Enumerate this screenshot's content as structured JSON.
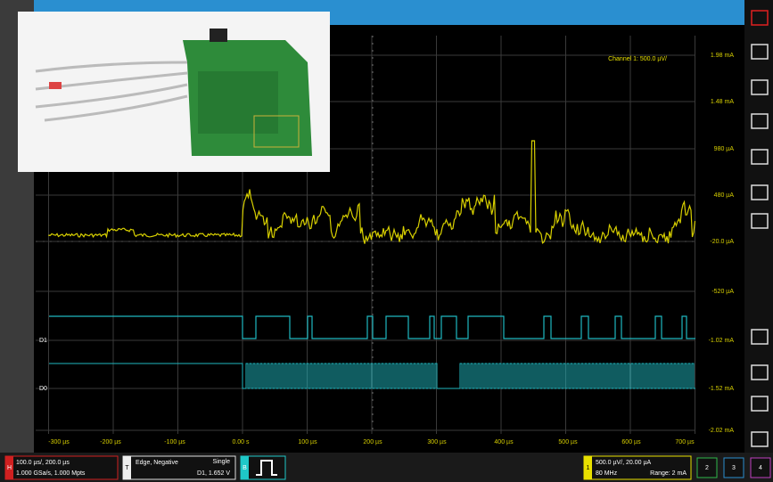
{
  "window": {
    "channel_label": "Channel 1: 500.0 µV/",
    "y_axis_labels": [
      "1.98 mA",
      "1.48 mA",
      "980 µA",
      "480 µA",
      "-20.0 µA",
      "-520 µA",
      "-1.02 mA",
      "-1.52 mA",
      "-2.02 mA"
    ],
    "x_axis_labels": [
      "-300 µs",
      "-200 µs",
      "-100 µs",
      "0.00 s",
      "100 µs",
      "200 µs",
      "300 µs",
      "400 µs",
      "500 µs",
      "600 µs",
      "700 µs"
    ],
    "digital_channels": [
      "D1",
      "D0"
    ]
  },
  "status_bar": {
    "horizontal": {
      "badge": "H",
      "line1": "100.0 µs/, 200.0 µs",
      "line2": "1.000 GSa/s, 1.000 Mpts"
    },
    "trigger": {
      "badge": "T",
      "line1": "Edge, Negative",
      "mode": "Single",
      "line2": "D1, 1.652 V"
    },
    "bus": {
      "badge": "B"
    },
    "channel1": {
      "badge": "1",
      "line1": "500.0 µV/, 20.00 µA",
      "line2_left": "80 MHz",
      "line2_right": "Range: 2 mA"
    },
    "channels": [
      "2",
      "3",
      "4"
    ]
  }
}
